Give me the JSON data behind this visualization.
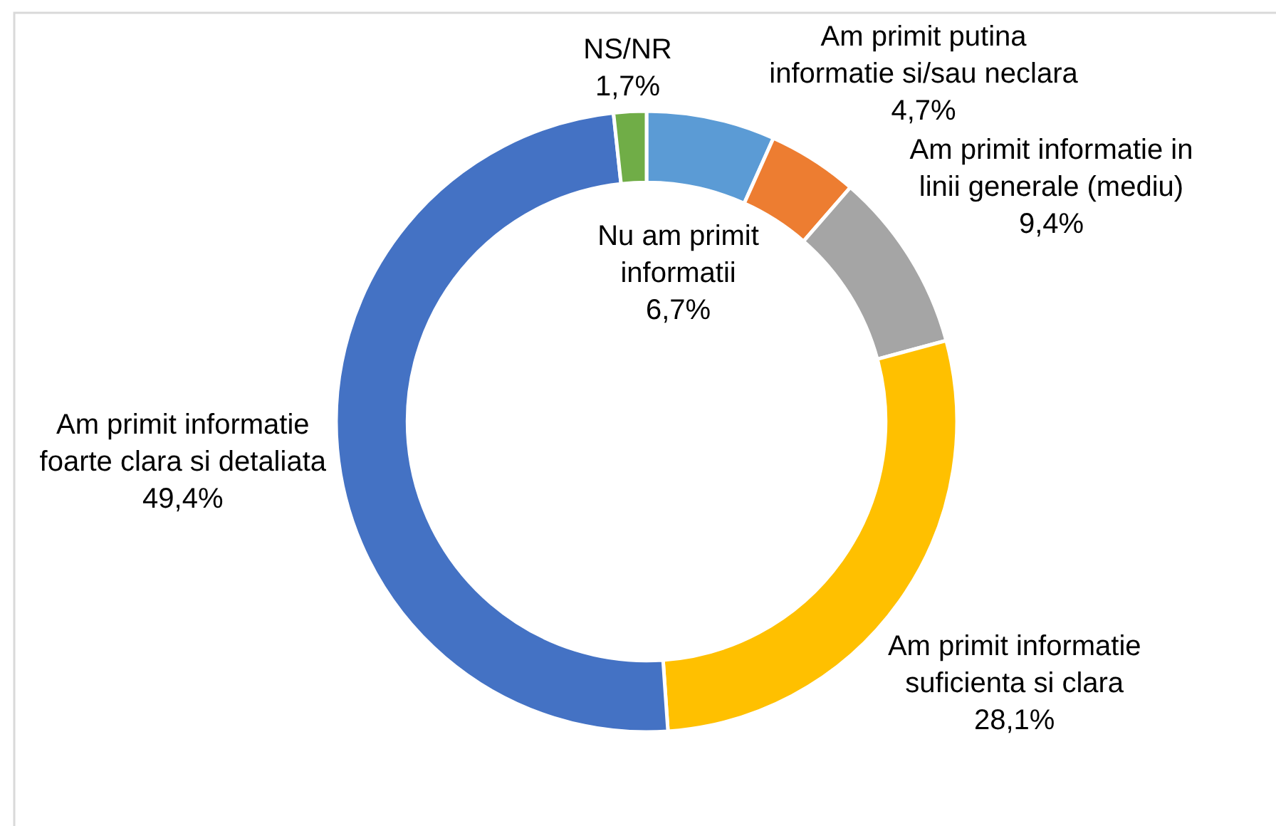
{
  "chart_data": {
    "type": "donut",
    "categories": [
      "Nu am primit informatii",
      "Am primit putina informatie si/sau neclara",
      "Am primit informatie in linii generale (mediu)",
      "Am primit informatie suficienta si clara",
      "Am primit informatie foarte clara si detaliata",
      "NS/NR"
    ],
    "values": [
      6.7,
      4.7,
      9.4,
      28.1,
      49.4,
      1.7
    ],
    "colors": [
      "#5b9bd5",
      "#ed7d31",
      "#a5a5a5",
      "#ffc000",
      "#4472c4",
      "#70ad47"
    ],
    "value_labels": [
      "6,7%",
      "4,7%",
      "9,4%",
      "28,1%",
      "49,4%",
      "1,7%"
    ]
  }
}
